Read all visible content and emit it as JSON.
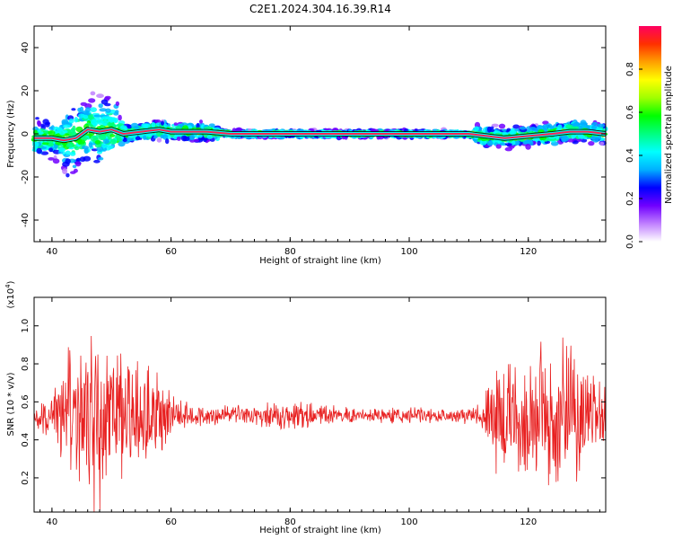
{
  "title": "C2E1.2024.304.16.39.R14",
  "chart_data": [
    {
      "type": "heatmap",
      "xlabel": "Height of straight line (km)",
      "ylabel": "Frequency (Hz)",
      "xlim": [
        37,
        133
      ],
      "ylim": [
        -50,
        50
      ],
      "xticks": [
        40,
        60,
        80,
        100,
        120
      ],
      "yticks": [
        -40,
        -20,
        0,
        20,
        40
      ],
      "colorbar": {
        "label": "Normalized spectral amplitude",
        "range": [
          0,
          1
        ],
        "ticks": [
          "0.0",
          "0.2",
          "0.4",
          "0.6",
          "0.8"
        ],
        "colors": [
          "#ffffff",
          "#c080ff",
          "#7000ff",
          "#0000ff",
          "#00b0ff",
          "#00ffff",
          "#00ff80",
          "#00ff00",
          "#a0ff00",
          "#ffff00",
          "#ffa000",
          "#ff3000",
          "#ff0060"
        ]
      },
      "ridge": [
        [
          37,
          -2
        ],
        [
          40,
          -2
        ],
        [
          42,
          -3
        ],
        [
          44,
          -2
        ],
        [
          46,
          2
        ],
        [
          48,
          1
        ],
        [
          50,
          2
        ],
        [
          52,
          0
        ],
        [
          55,
          1
        ],
        [
          58,
          2
        ],
        [
          60,
          1
        ],
        [
          63,
          1
        ],
        [
          66,
          1
        ],
        [
          70,
          0
        ],
        [
          80,
          0
        ],
        [
          90,
          0
        ],
        [
          100,
          0
        ],
        [
          110,
          0
        ],
        [
          113,
          -1
        ],
        [
          116,
          -2
        ],
        [
          120,
          -1
        ],
        [
          124,
          0
        ],
        [
          127,
          1
        ],
        [
          130,
          1
        ],
        [
          133,
          0
        ]
      ]
    },
    {
      "type": "line",
      "xlabel": "Height of straight line (km)",
      "ylabel": "SNR (10 * v/v)",
      "multiplier_label": "(x10",
      "multiplier_exp": "4",
      "xlim": [
        37,
        133
      ],
      "ylim": [
        0.02,
        1.15
      ],
      "xticks": [
        40,
        60,
        80,
        100,
        120
      ],
      "yticks": [
        0.2,
        0.4,
        0.6,
        0.8,
        1.0
      ],
      "ytick_labels": [
        "0.2",
        "0.4",
        "0.6",
        "0.8",
        "1.0"
      ],
      "color": "#e82020",
      "baseline": 0.53,
      "envelope": [
        [
          37,
          0.07
        ],
        [
          40,
          0.1
        ],
        [
          42,
          0.3
        ],
        [
          44,
          0.4
        ],
        [
          46,
          0.45
        ],
        [
          48,
          0.48
        ],
        [
          50,
          0.42
        ],
        [
          52,
          0.3
        ],
        [
          54,
          0.28
        ],
        [
          56,
          0.3
        ],
        [
          58,
          0.25
        ],
        [
          60,
          0.1
        ],
        [
          62,
          0.08
        ],
        [
          65,
          0.06
        ],
        [
          70,
          0.05
        ],
        [
          75,
          0.06
        ],
        [
          80,
          0.08
        ],
        [
          85,
          0.05
        ],
        [
          90,
          0.04
        ],
        [
          95,
          0.04
        ],
        [
          100,
          0.04
        ],
        [
          105,
          0.04
        ],
        [
          110,
          0.04
        ],
        [
          112,
          0.06
        ],
        [
          114,
          0.25
        ],
        [
          116,
          0.32
        ],
        [
          118,
          0.28
        ],
        [
          120,
          0.3
        ],
        [
          122,
          0.35
        ],
        [
          125,
          0.42
        ],
        [
          127,
          0.38
        ],
        [
          130,
          0.28
        ],
        [
          133,
          0.18
        ]
      ]
    }
  ]
}
